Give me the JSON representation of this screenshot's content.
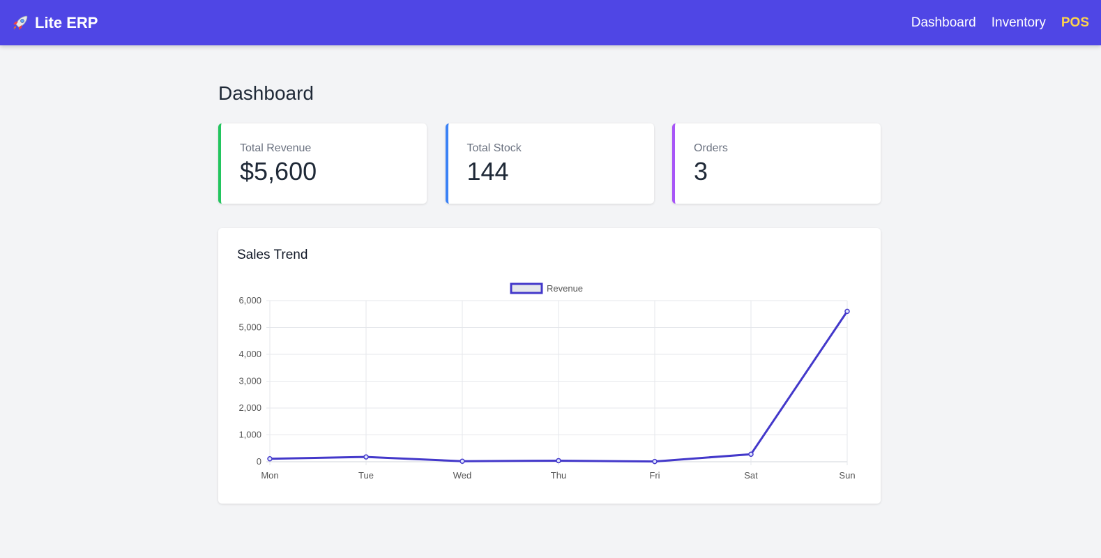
{
  "navbar": {
    "brand_icon": "rocket-icon",
    "brand_text": "Lite ERP",
    "links": [
      {
        "label": "Dashboard",
        "active": false
      },
      {
        "label": "Inventory",
        "active": false
      },
      {
        "label": "POS",
        "active": true
      }
    ],
    "bg_color": "#4f46e5",
    "active_color": "#fcd34d"
  },
  "page": {
    "title": "Dashboard"
  },
  "stats": [
    {
      "label": "Total Revenue",
      "value": "$5,600",
      "accent": "#22c55e"
    },
    {
      "label": "Total Stock",
      "value": "144",
      "accent": "#3b82f6"
    },
    {
      "label": "Orders",
      "value": "3",
      "accent": "#a855f7"
    }
  ],
  "chart_card": {
    "title": "Sales Trend"
  },
  "chart_data": {
    "type": "line",
    "categories": [
      "Mon",
      "Tue",
      "Wed",
      "Thu",
      "Fri",
      "Sat",
      "Sun"
    ],
    "series": [
      {
        "name": "Revenue",
        "values": [
          110,
          180,
          20,
          40,
          10,
          280,
          5600
        ],
        "color": "#4338ca"
      }
    ],
    "ylim": [
      0,
      6000
    ],
    "yticks": [
      0,
      1000,
      2000,
      3000,
      4000,
      5000,
      6000
    ],
    "ytick_labels": [
      "0",
      "1,000",
      "2,000",
      "3,000",
      "4,000",
      "5,000",
      "6,000"
    ],
    "grid": true,
    "legend_position": "top-center"
  }
}
